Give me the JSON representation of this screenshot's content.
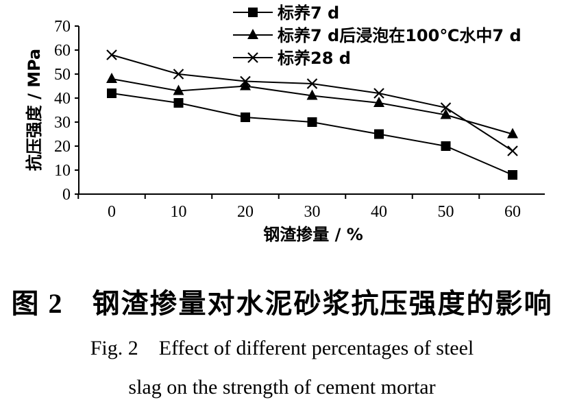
{
  "chart_data": {
    "type": "line",
    "title": "",
    "xlabel": "钢渣掺量 / %",
    "ylabel": "抗压强度 / MPa",
    "x": [
      0,
      10,
      20,
      30,
      40,
      50,
      60
    ],
    "x_ticks": [
      "0",
      "10",
      "20",
      "30",
      "40",
      "50",
      "60"
    ],
    "y_ticks": [
      "0",
      "10",
      "20",
      "30",
      "40",
      "50",
      "60",
      "70"
    ],
    "ylim": [
      0,
      70
    ],
    "grid": false,
    "legend_position": "top-right",
    "series": [
      {
        "name": "标养7 d",
        "marker": "square",
        "values": [
          42,
          38,
          32,
          30,
          25,
          20,
          8
        ]
      },
      {
        "name": "标养7 d后浸泡在100℃水中7 d",
        "marker": "triangle",
        "values": [
          48,
          43,
          45,
          41,
          38,
          33,
          25
        ]
      },
      {
        "name": "标养28 d",
        "marker": "cross",
        "values": [
          58,
          50,
          47,
          46,
          42,
          36,
          18
        ]
      }
    ]
  },
  "caption": {
    "cn": "图 2　钢渣掺量对水泥砂浆抗压强度的影响",
    "en_line1": "Fig. 2　Effect of different percentages of steel",
    "en_line2": "slag on the strength of cement mortar"
  }
}
